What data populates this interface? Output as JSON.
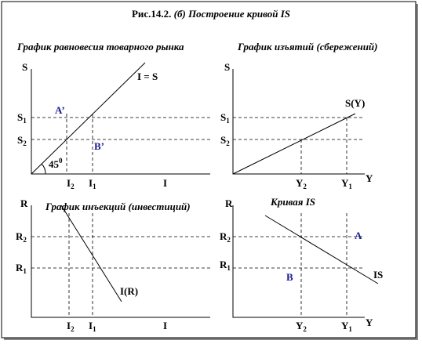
{
  "title": {
    "number": "Рис.14.2.",
    "caption": "(б) Построение кривой IS"
  },
  "panels": {
    "goods_market": {
      "title": "График равновесия товарного рынка",
      "y_axis": "S",
      "x_axis": "I",
      "line_label": "I = S",
      "angle": {
        "main": "45",
        "sup": "0"
      },
      "points": [
        "A’",
        "B’"
      ],
      "y_ticks": [
        {
          "main": "S",
          "sub": "1"
        },
        {
          "main": "S",
          "sub": "2"
        }
      ],
      "x_ticks": [
        {
          "main": "I",
          "sub": "2"
        },
        {
          "main": "I",
          "sub": "1"
        }
      ]
    },
    "savings": {
      "title": "График изъятий (сбережений)",
      "y_axis": "S",
      "x_axis": "Y",
      "line_label": "S(Y)",
      "y_ticks": [
        {
          "main": "S",
          "sub": "1"
        },
        {
          "main": "S",
          "sub": "2"
        }
      ],
      "x_ticks": [
        {
          "main": "Y",
          "sub": "2"
        },
        {
          "main": "Y",
          "sub": "1"
        }
      ]
    },
    "investment": {
      "title": "График инъекций (инвестиций)",
      "y_axis": "R",
      "x_axis": "I",
      "line_label": "I(R)",
      "y_ticks": [
        {
          "main": "R",
          "sub": "2"
        },
        {
          "main": "R",
          "sub": "1"
        }
      ],
      "x_ticks": [
        {
          "main": "I",
          "sub": "2"
        },
        {
          "main": "I",
          "sub": "1"
        }
      ]
    },
    "is_curve": {
      "title": "Кривая IS",
      "y_axis": "R",
      "x_axis": "Y",
      "line_label": "IS",
      "points": [
        "A",
        "B"
      ],
      "y_ticks": [
        {
          "main": "R",
          "sub": "2"
        },
        {
          "main": "R",
          "sub": "1"
        }
      ],
      "x_ticks": [
        {
          "main": "Y",
          "sub": "2"
        },
        {
          "main": "Y",
          "sub": "1"
        }
      ]
    }
  }
}
